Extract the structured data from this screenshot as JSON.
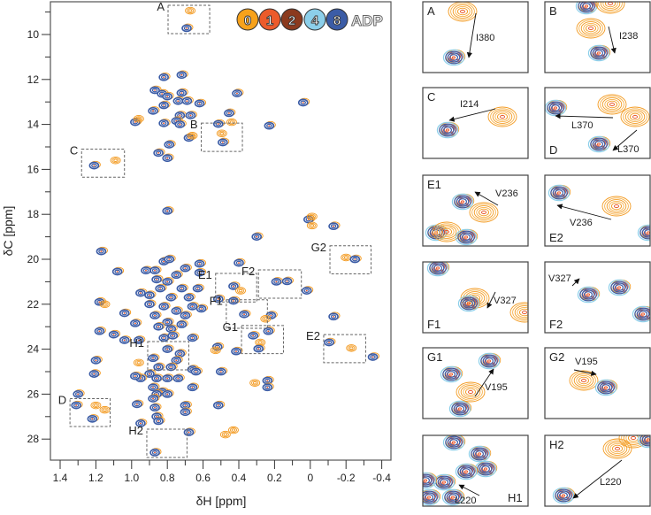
{
  "chart_data": {
    "type": "scatter",
    "subtype": "2D NMR contour overlay (methyl region)",
    "xlabel": "δH [ppm]",
    "ylabel": "δC [ppm]",
    "xlim": [
      1.45,
      -0.48
    ],
    "ylim": [
      8.6,
      29.1
    ],
    "x_reversed": true,
    "y_reversed": true,
    "x_ticks": [
      "1.4",
      "1.2",
      "1.0",
      "0.8",
      "0.6",
      "0.4",
      "0.2",
      "0",
      "-0.2",
      "-0.4"
    ],
    "x_tick_values": [
      1.4,
      1.2,
      1.0,
      0.8,
      0.6,
      0.4,
      0.2,
      0,
      -0.2,
      -0.4
    ],
    "y_ticks": [
      "10",
      "12",
      "14",
      "16",
      "18",
      "20",
      "22",
      "24",
      "26",
      "28"
    ],
    "y_tick_values": [
      10,
      12,
      14,
      16,
      18,
      20,
      22,
      24,
      26,
      28
    ],
    "grid": false,
    "legend": {
      "placement": "top-right",
      "suffix": "ADP",
      "entries": [
        {
          "label": "0",
          "color": "#f7a21b"
        },
        {
          "label": "1",
          "color": "#ec5b2b"
        },
        {
          "label": "2",
          "color": "#8b3a1e"
        },
        {
          "label": "4",
          "color": "#8ccfea"
        },
        {
          "label": "8",
          "color": "#3b5ca6"
        }
      ]
    },
    "colors": {
      "apo": "#f39a20",
      "adp": "#3b5ca6"
    },
    "peaks": [
      [
        0.672,
        8.94,
        "0"
      ],
      [
        0.692,
        9.72,
        "8"
      ],
      [
        0.87,
        12.48,
        "8"
      ],
      [
        0.83,
        12.64,
        "8"
      ],
      [
        0.8,
        12.76,
        "8"
      ],
      [
        0.72,
        12.6,
        "8"
      ],
      [
        0.74,
        12.96,
        "8"
      ],
      [
        0.69,
        12.96,
        "8"
      ],
      [
        0.62,
        13.07,
        "8"
      ],
      [
        0.72,
        11.8,
        "8"
      ],
      [
        0.82,
        11.9,
        "8"
      ],
      [
        0.82,
        13.15,
        "8"
      ],
      [
        0.88,
        13.4,
        "8"
      ],
      [
        0.73,
        13.6,
        "8"
      ],
      [
        0.67,
        13.6,
        "8"
      ],
      [
        0.82,
        13.95,
        "8"
      ],
      [
        0.75,
        13.85,
        "8"
      ],
      [
        0.73,
        14.0,
        "8"
      ],
      [
        0.98,
        13.9,
        "8"
      ],
      [
        0.96,
        13.75,
        "0"
      ],
      [
        0.68,
        14.6,
        "8"
      ],
      [
        0.66,
        14.5,
        "0"
      ],
      [
        0.79,
        14.9,
        "8"
      ],
      [
        0.85,
        15.27,
        "8"
      ],
      [
        0.8,
        15.5,
        "8"
      ],
      [
        0.41,
        12.62,
        "8"
      ],
      [
        0.455,
        13.5,
        "8"
      ],
      [
        0.515,
        13.98,
        "8"
      ],
      [
        0.44,
        13.9,
        "0"
      ],
      [
        0.495,
        14.4,
        "0"
      ],
      [
        0.49,
        14.8,
        "8"
      ],
      [
        0.23,
        14.06,
        "8"
      ],
      [
        0.04,
        13.03,
        "8"
      ],
      [
        1.21,
        15.83,
        "8"
      ],
      [
        1.09,
        15.6,
        "0"
      ],
      [
        0.8,
        17.85,
        "8"
      ],
      [
        0.01,
        18.23,
        "8"
      ],
      [
        -0.01,
        18.1,
        "0"
      ],
      [
        -0.01,
        18.5,
        "0"
      ],
      [
        -0.13,
        18.53,
        "8"
      ],
      [
        0.3,
        19.0,
        "8"
      ],
      [
        1.17,
        19.65,
        "8"
      ],
      [
        -0.2,
        19.92,
        "0"
      ],
      [
        -0.25,
        20.0,
        "8"
      ],
      [
        0.4,
        20.16,
        "8"
      ],
      [
        0.43,
        21.2,
        "8"
      ],
      [
        0.39,
        21.4,
        "0"
      ],
      [
        0.515,
        21.77,
        "8"
      ],
      [
        0.43,
        21.85,
        "8"
      ],
      [
        0.19,
        21.0,
        "8"
      ],
      [
        0.13,
        20.98,
        "8"
      ],
      [
        0.02,
        21.4,
        "8"
      ],
      [
        0.37,
        22.45,
        "8"
      ],
      [
        0.22,
        22.5,
        "8"
      ],
      [
        0.25,
        22.65,
        "0"
      ],
      [
        0.32,
        23.4,
        "8"
      ],
      [
        0.28,
        23.7,
        "0"
      ],
      [
        0.29,
        23.98,
        "8"
      ],
      [
        0.235,
        23.2,
        "8"
      ],
      [
        0.415,
        24.1,
        "8"
      ],
      [
        0.52,
        23.9,
        "8"
      ],
      [
        0.53,
        24.05,
        "0"
      ],
      [
        0.5,
        25.0,
        "8"
      ],
      [
        0.24,
        25.4,
        "8"
      ],
      [
        0.24,
        25.7,
        "8"
      ],
      [
        0.31,
        25.5,
        "0"
      ],
      [
        -0.13,
        22.55,
        "8"
      ],
      [
        -0.105,
        23.7,
        "8"
      ],
      [
        -0.23,
        23.95,
        "0"
      ],
      [
        -0.35,
        24.35,
        "8"
      ],
      [
        0.515,
        26.5,
        "8"
      ],
      [
        1.3,
        26.0,
        "8"
      ],
      [
        1.31,
        26.5,
        "8"
      ],
      [
        1.2,
        26.5,
        "0"
      ],
      [
        1.15,
        26.7,
        "0"
      ],
      [
        1.22,
        27.1,
        "8"
      ],
      [
        0.475,
        27.8,
        "0"
      ],
      [
        0.43,
        27.6,
        "0"
      ],
      [
        0.68,
        27.7,
        "8"
      ],
      [
        0.87,
        28.6,
        "8"
      ],
      [
        1.08,
        20.55,
        "8"
      ],
      [
        1.18,
        21.9,
        "8"
      ],
      [
        1.15,
        22.0,
        "0"
      ],
      [
        1.04,
        22.4,
        "8"
      ],
      [
        0.98,
        22.85,
        "8"
      ],
      [
        1.18,
        23.2,
        "8"
      ],
      [
        1.1,
        23.35,
        "8"
      ],
      [
        1.04,
        23.6,
        "8"
      ],
      [
        0.96,
        23.6,
        "8"
      ],
      [
        1.2,
        24.5,
        "8"
      ],
      [
        1.21,
        25.1,
        "8"
      ],
      [
        0.97,
        26.45,
        "8"
      ],
      [
        0.95,
        27.3,
        "8"
      ],
      [
        0.66,
        25.7,
        "8"
      ],
      [
        0.7,
        26.5,
        "8"
      ],
      [
        0.7,
        26.8,
        "8"
      ],
      [
        0.66,
        23.5,
        "8"
      ],
      [
        0.66,
        24.9,
        "8"
      ],
      [
        0.61,
        22.2,
        "8"
      ],
      [
        0.96,
        24.6,
        "0"
      ],
      [
        0.92,
        20.5,
        "8"
      ],
      [
        0.87,
        20.5,
        "8"
      ],
      [
        0.82,
        20.1,
        "8"
      ],
      [
        0.79,
        20.0,
        "8"
      ],
      [
        0.75,
        20.7,
        "8"
      ],
      [
        0.7,
        20.4,
        "8"
      ],
      [
        0.86,
        20.9,
        "8"
      ],
      [
        0.8,
        21.0,
        "8"
      ],
      [
        0.72,
        21.3,
        "8"
      ],
      [
        0.95,
        21.5,
        "8"
      ],
      [
        0.9,
        21.6,
        "8"
      ],
      [
        0.84,
        21.3,
        "8"
      ],
      [
        0.78,
        21.7,
        "8"
      ],
      [
        0.68,
        21.7,
        "8"
      ],
      [
        0.63,
        21.3,
        "8"
      ],
      [
        0.62,
        20.6,
        "8"
      ],
      [
        0.9,
        22.0,
        "8"
      ],
      [
        0.82,
        22.1,
        "8"
      ],
      [
        0.75,
        22.3,
        "8"
      ],
      [
        0.7,
        22.5,
        "8"
      ],
      [
        0.66,
        22.1,
        "8"
      ],
      [
        0.87,
        22.5,
        "8"
      ],
      [
        0.8,
        22.8,
        "8"
      ],
      [
        0.72,
        22.9,
        "8"
      ],
      [
        0.85,
        23.0,
        "8"
      ],
      [
        0.78,
        23.1,
        "8"
      ],
      [
        0.82,
        23.5,
        "8"
      ],
      [
        0.77,
        23.4,
        "8"
      ],
      [
        0.8,
        24.0,
        "8"
      ],
      [
        0.73,
        24.2,
        "8"
      ],
      [
        0.88,
        24.4,
        "8"
      ],
      [
        0.85,
        24.8,
        "8"
      ],
      [
        0.75,
        24.5,
        "8"
      ],
      [
        0.78,
        24.8,
        "8"
      ],
      [
        0.9,
        25.1,
        "8"
      ],
      [
        0.86,
        25.3,
        "8"
      ],
      [
        0.8,
        25.3,
        "8"
      ],
      [
        0.74,
        25.3,
        "8"
      ],
      [
        0.95,
        25.3,
        "8"
      ],
      [
        0.98,
        25.2,
        "8"
      ],
      [
        0.88,
        25.7,
        "8"
      ],
      [
        0.83,
        25.9,
        "8"
      ],
      [
        0.86,
        26.0,
        "8"
      ],
      [
        0.8,
        26.0,
        "8"
      ],
      [
        0.88,
        26.2,
        "8"
      ],
      [
        0.87,
        26.6,
        "8"
      ],
      [
        0.86,
        27.0,
        "8"
      ],
      [
        0.85,
        27.2,
        "8"
      ],
      [
        0.64,
        25.0,
        "8"
      ],
      [
        0.62,
        20.2,
        "8"
      ]
    ],
    "regions": [
      {
        "label": "A",
        "h": [
          0.796,
          0.563
        ],
        "c": [
          8.7,
          9.96
        ]
      },
      {
        "label": "B",
        "h": [
          0.61,
          0.38
        ],
        "c": [
          13.94,
          15.2
        ]
      },
      {
        "label": "C",
        "h": [
          1.28,
          1.04
        ],
        "c": [
          15.1,
          16.35
        ]
      },
      {
        "label": "D",
        "h": [
          1.345,
          1.12
        ],
        "c": [
          26.2,
          27.44
        ]
      },
      {
        "label": "E1",
        "h": [
          0.53,
          0.3
        ],
        "c": [
          20.63,
          21.9
        ]
      },
      {
        "label": "E2",
        "h": [
          -0.075,
          -0.31
        ],
        "c": [
          23.35,
          24.6
        ]
      },
      {
        "label": "F1",
        "h": [
          0.47,
          0.24
        ],
        "c": [
          21.8,
          23.07
        ]
      },
      {
        "label": "F2",
        "h": [
          0.29,
          0.05
        ],
        "c": [
          20.47,
          21.73
        ]
      },
      {
        "label": "G1",
        "h": [
          0.385,
          0.15
        ],
        "c": [
          22.95,
          24.2
        ]
      },
      {
        "label": "G2",
        "h": [
          -0.11,
          -0.34
        ],
        "c": [
          19.4,
          20.65
        ]
      },
      {
        "label": "H1",
        "h": [
          0.91,
          0.68
        ],
        "c": [
          23.66,
          24.92
        ]
      },
      {
        "label": "H2",
        "h": [
          0.915,
          0.69
        ],
        "c": [
          27.56,
          28.82
        ]
      }
    ]
  },
  "insets": [
    {
      "label": "A",
      "residues": [
        "I380"
      ]
    },
    {
      "label": "B",
      "residues": [
        "I238"
      ]
    },
    {
      "label": "C",
      "residues": [
        "I214"
      ]
    },
    {
      "label": "D",
      "residues": [
        "L370",
        "L370"
      ]
    },
    {
      "label": "E1",
      "residues": [
        "V236"
      ]
    },
    {
      "label": "E2",
      "residues": [
        "V236"
      ]
    },
    {
      "label": "F1",
      "residues": [
        "V327"
      ]
    },
    {
      "label": "F2",
      "residues": [
        "V327"
      ]
    },
    {
      "label": "G1",
      "residues": [
        "V195"
      ]
    },
    {
      "label": "G2",
      "residues": [
        "V195"
      ]
    },
    {
      "label": "H1",
      "residues": [
        "L220"
      ]
    },
    {
      "label": "H2",
      "residues": [
        "L220"
      ]
    }
  ]
}
